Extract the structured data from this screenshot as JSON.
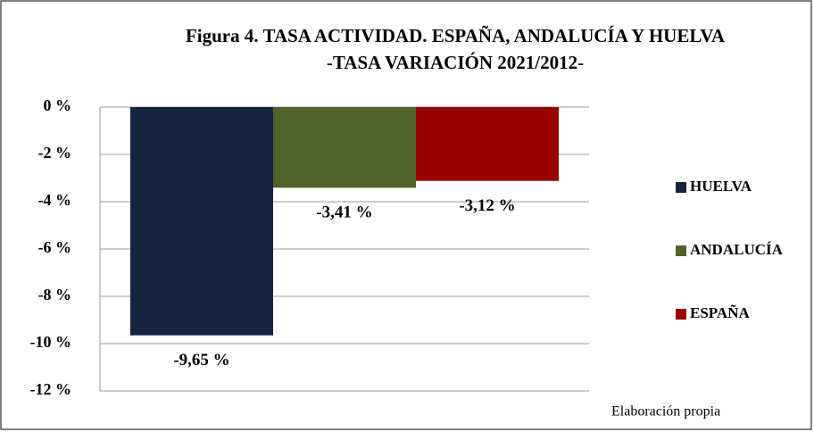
{
  "chart_data": {
    "type": "bar",
    "title": "Figura 4. TASA ACTIVIDAD. ESPAÑA, ANDALUCÍA Y HUELVA",
    "subtitle": "-TASA VARIACIÓN 2021/2012-",
    "series": [
      {
        "name": "HUELVA",
        "color": "#14243f",
        "values": [
          -9.65
        ],
        "value_labels": [
          "-9,65 %"
        ]
      },
      {
        "name": "ANDALUCÍA",
        "color": "#4f6228",
        "values": [
          -3.41
        ],
        "value_labels": [
          "-3,41 %"
        ]
      },
      {
        "name": "ESPAÑA",
        "color": "#990000",
        "values": [
          -3.12
        ],
        "value_labels": [
          "-3,12 %"
        ]
      }
    ],
    "ylim": [
      -12,
      0
    ],
    "yticks": [
      {
        "value": 0,
        "label": "0 %"
      },
      {
        "value": -2,
        "label": "-2 %"
      },
      {
        "value": -4,
        "label": "-4 %"
      },
      {
        "value": -6,
        "label": "-6 %"
      },
      {
        "value": -8,
        "label": "-8 %"
      },
      {
        "value": -10,
        "label": "-10 %"
      },
      {
        "value": -12,
        "label": "-12 %"
      }
    ],
    "grid": true,
    "legend": "right",
    "source": "Elaboración propia"
  }
}
